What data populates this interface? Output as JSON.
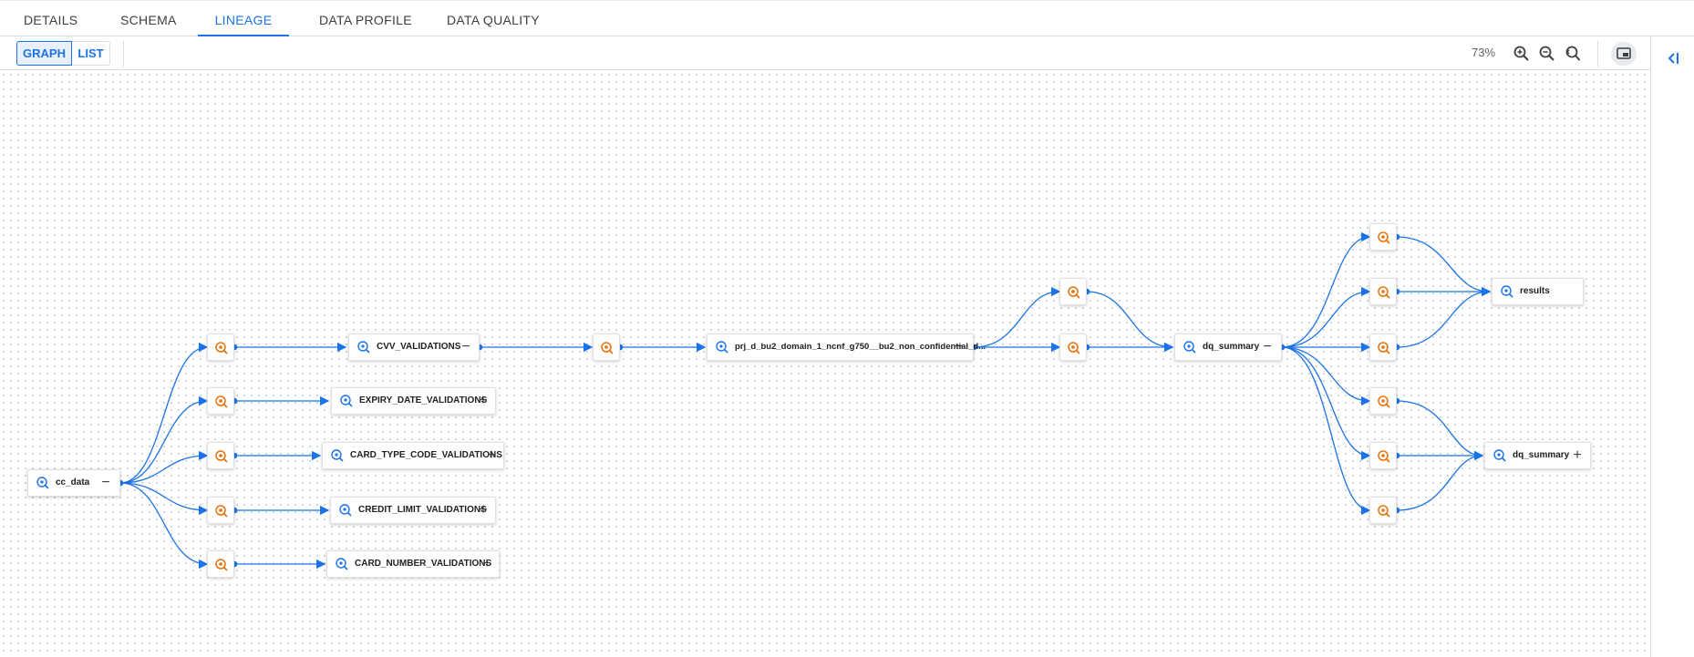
{
  "tabs": [
    {
      "label": "DETAILS"
    },
    {
      "label": "SCHEMA"
    },
    {
      "label": "LINEAGE"
    },
    {
      "label": "DATA PROFILE"
    },
    {
      "label": "DATA QUALITY"
    }
  ],
  "toolbar": {
    "view_graph": "GRAPH",
    "view_list": "LIST",
    "zoom": "73%"
  },
  "colors": {
    "accent": "#1a73e8",
    "process_icon": "#e8710a",
    "edge": "#1a73e8"
  },
  "graph": {
    "nodes": [
      {
        "label": "cc_data",
        "action": "−"
      },
      {
        "label": "CVV_VALIDATIONS",
        "action": "−"
      },
      {
        "label": "EXPIRY_DATE_VALIDATIONS",
        "action": "+"
      },
      {
        "label": "CARD_TYPE_CODE_VALIDATIONS",
        "action": "+"
      },
      {
        "label": "CREDIT_LIMIT_VALIDATIONS",
        "action": "+"
      },
      {
        "label": "CARD_NUMBER_VALIDATIONS",
        "action": "+"
      },
      {
        "label": "prj_d_bu2_domain_1_ncnf_g750__bu2_non_confidential_d...",
        "action": "−"
      },
      {
        "label": "dq_summary",
        "action": "−"
      },
      {
        "label": "results",
        "action": ""
      },
      {
        "label": "dq_summary",
        "action": "+"
      }
    ]
  }
}
